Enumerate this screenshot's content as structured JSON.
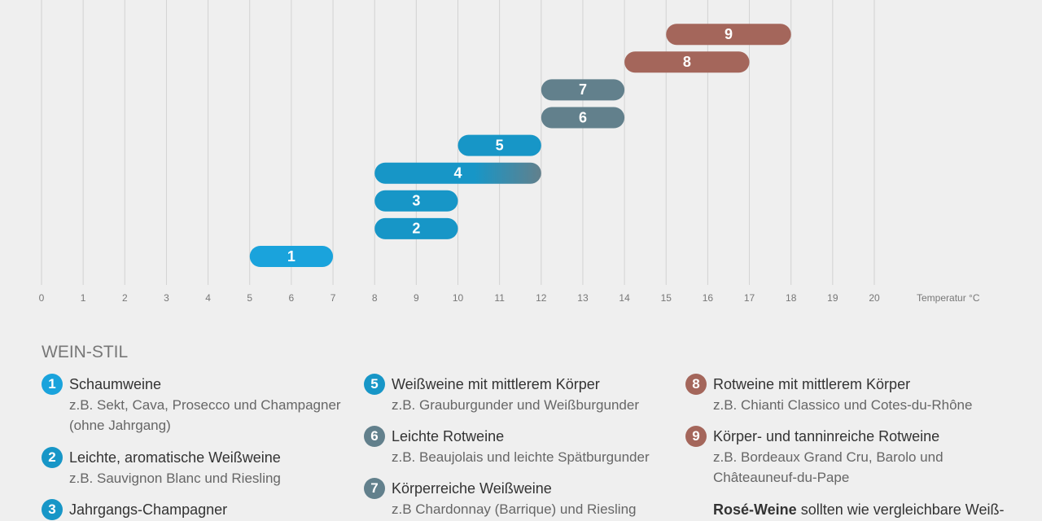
{
  "chart_data": {
    "type": "range-bar",
    "categories": [
      "1",
      "2",
      "3",
      "4",
      "5",
      "6",
      "7",
      "8",
      "9"
    ],
    "starts": [
      5,
      8,
      8,
      8,
      10,
      12,
      12,
      14,
      15
    ],
    "ends": [
      7,
      10,
      10,
      12,
      12,
      14,
      14,
      17,
      18
    ],
    "colors": [
      "#1aa3dc",
      "#1796c7",
      "#1796c7",
      [
        "#1796c7",
        "#62808c"
      ],
      "#1796c7",
      "#62808c",
      "#62808c",
      "#a4665b",
      "#a4665b"
    ],
    "xlim": [
      0,
      20
    ],
    "xticks": [
      0,
      1,
      2,
      3,
      4,
      5,
      6,
      7,
      8,
      9,
      10,
      11,
      12,
      13,
      14,
      15,
      16,
      17,
      18,
      19,
      20
    ],
    "x_label": "Temperatur °C",
    "grid": true
  },
  "legend": {
    "title": "WEIN-STIL",
    "items": [
      {
        "number": "1",
        "color": "#1aa3dc",
        "title": "Schaumweine",
        "desc": [
          "z.B. Sekt, Cava, Prosecco und Champagner",
          "(ohne Jahrgang)"
        ]
      },
      {
        "number": "2",
        "color": "#1796c7",
        "title": "Leichte, aromatische Weißweine",
        "desc": [
          "z.B. Sauvignon Blanc und Riesling"
        ]
      },
      {
        "number": "3",
        "color": "#1796c7",
        "title": "Jahrgangs-Champagner",
        "desc": []
      },
      {
        "number": "5",
        "color": "#1796c7",
        "title": "Weißweine mit mittlerem Körper",
        "desc": [
          "z.B. Grauburgunder und Weißburgunder"
        ]
      },
      {
        "number": "6",
        "color": "#62808c",
        "title": "Leichte Rotweine",
        "desc": [
          "z.B. Beaujolais und leichte Spätburgunder"
        ]
      },
      {
        "number": "7",
        "color": "#62808c",
        "title": "Körperreiche Weißweine",
        "desc": [
          "z.B Chardonnay (Barrique) und Riesling"
        ]
      },
      {
        "number": "8",
        "color": "#a4665b",
        "title": "Rotweine mit mittlerem Körper",
        "desc": [
          "z.B. Chianti Classico und Cotes-du-Rhône"
        ]
      },
      {
        "number": "9",
        "color": "#a4665b",
        "title": "Körper- und tanninreiche Rotweine",
        "desc": [
          "z.B. Bordeaux Grand Cru, Barolo und",
          "Châteauneuf-du-Pape"
        ]
      }
    ],
    "note": {
      "bold": "Rosé-Weine",
      "text": " sollten wie vergleichbare Weiß-"
    }
  }
}
